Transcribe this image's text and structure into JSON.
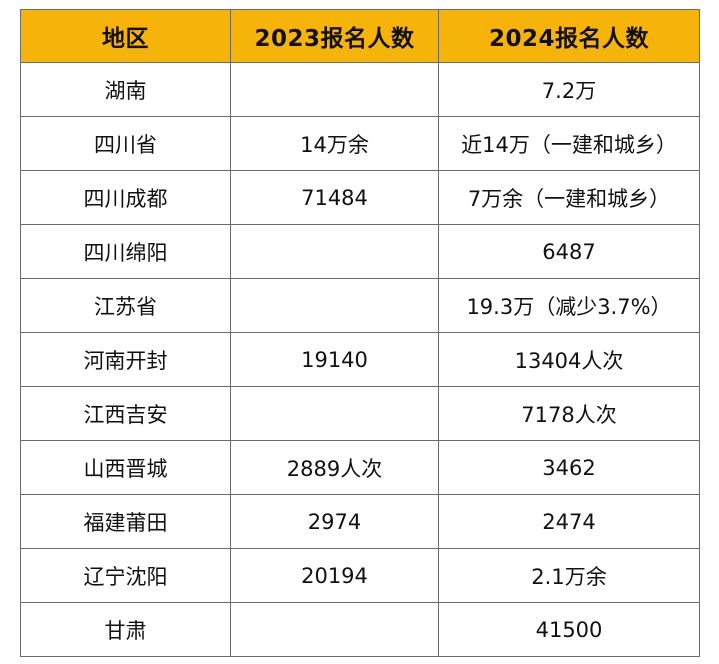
{
  "table": {
    "headers": [
      "地区",
      "2023报名人数",
      "2024报名人数"
    ],
    "rows": [
      [
        "湖南",
        "",
        "7.2万"
      ],
      [
        "四川省",
        "14万余",
        "近14万（一建和城乡）"
      ],
      [
        "四川成都",
        "71484",
        "7万余（一建和城乡）"
      ],
      [
        "四川绵阳",
        "",
        "6487"
      ],
      [
        "江苏省",
        "",
        "19.3万（减少3.7%）"
      ],
      [
        "河南开封",
        "19140",
        "13404人次"
      ],
      [
        "江西吉安",
        "",
        "7178人次"
      ],
      [
        "山西晋城",
        "2889人次",
        "3462"
      ],
      [
        "福建莆田",
        "2974",
        "2474"
      ],
      [
        "辽宁沈阳",
        "20194",
        "2.1万余"
      ],
      [
        "甘肃",
        "",
        "41500"
      ]
    ]
  },
  "colors": {
    "header_background": "#f6b40a",
    "border": "#6b6b6b"
  }
}
